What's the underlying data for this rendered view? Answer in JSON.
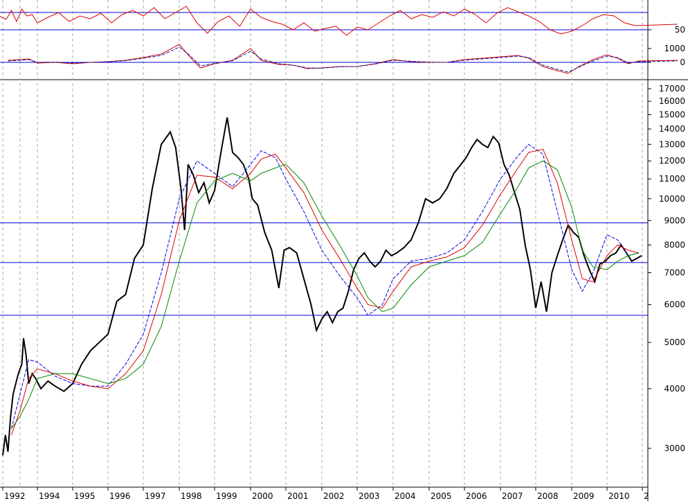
{
  "chart_data": [
    {
      "type": "line",
      "title": "",
      "yticks": [
        50
      ],
      "hlines": [
        75,
        50
      ],
      "series": [
        {
          "color": "#dd0000",
          "x": [
            1991.9,
            1992.2,
            1992.5,
            1992.8,
            1993.1,
            1993.4,
            1993.7,
            1994.0,
            1994.3,
            1994.6,
            1994.9,
            1995.2,
            1995.5,
            1995.8,
            1996.1,
            1996.4,
            1996.7,
            1997.0,
            1997.3,
            1997.6,
            1997.9,
            1998.2,
            1998.5,
            1998.8,
            1999.1,
            1999.4,
            1999.7,
            2000.0,
            2000.3,
            2000.6,
            2000.9,
            2001.2,
            2001.5,
            2001.8,
            2002.1,
            2002.4,
            2002.7,
            2003.0,
            2003.3,
            2003.6,
            2003.9,
            2004.2,
            2004.5,
            2004.8,
            2005.1,
            2005.4,
            2005.7,
            2006.0,
            2006.3,
            2006.6,
            2006.9,
            2007.2,
            2007.5,
            2007.8,
            2008.1,
            2008.4,
            2008.7,
            2009.0,
            2009.3,
            2009.6,
            2009.9,
            2010.2,
            2010.5,
            2010.8,
            2011.0
          ],
          "values": [
            70,
            65,
            78,
            62,
            80,
            70,
            72,
            60,
            68,
            75,
            62,
            70,
            66,
            74,
            60,
            72,
            78,
            70,
            82,
            66,
            75,
            84,
            60,
            45,
            62,
            70,
            55,
            80,
            68,
            62,
            58,
            50,
            60,
            48,
            52,
            55,
            42,
            54,
            50,
            60,
            70,
            78,
            66,
            72,
            68,
            76,
            70,
            80,
            72,
            60,
            74,
            82,
            76,
            70,
            62,
            50,
            44,
            48,
            56,
            66,
            72,
            70,
            60,
            56,
            58
          ]
        }
      ]
    },
    {
      "type": "line",
      "title": "",
      "yticks": [
        1000,
        0
      ],
      "hlines": [
        0
      ],
      "series": [
        {
          "color": "#cc0000",
          "x": [
            1992.3,
            1993.0,
            1993.5,
            1994.0,
            1994.5,
            1995.0,
            1995.5,
            1996.0,
            1996.5,
            1997.0,
            1997.5,
            1998.0,
            1998.3,
            1998.6,
            1999.0,
            1999.5,
            2000.0,
            2000.3,
            2000.8,
            2001.2,
            2001.6,
            2002.0,
            2002.5,
            2003.0,
            2003.5,
            2004.0,
            2004.5,
            2005.0,
            2005.5,
            2006.0,
            2006.5,
            2007.0,
            2007.5,
            2007.8,
            2008.2,
            2008.6,
            2008.9,
            2009.2,
            2009.6,
            2010.0,
            2010.3,
            2010.6,
            2010.9,
            2011.0
          ],
          "values": [
            150,
            200,
            250,
            -50,
            0,
            -100,
            0,
            50,
            150,
            350,
            600,
            1300,
            400,
            -400,
            -100,
            150,
            1000,
            150,
            -150,
            -200,
            -450,
            -400,
            -300,
            -300,
            -100,
            200,
            50,
            0,
            0,
            200,
            300,
            400,
            500,
            300,
            -300,
            -600,
            -800,
            -300,
            200,
            550,
            300,
            -100,
            100,
            150
          ]
        },
        {
          "color": "#1a1aa0",
          "x": [
            1992.3,
            1993.0,
            1993.5,
            1994.0,
            1994.5,
            1995.0,
            1995.5,
            1996.0,
            1996.5,
            1997.0,
            1997.5,
            1998.0,
            1998.3,
            1998.6,
            1999.0,
            1999.5,
            2000.0,
            2000.3,
            2000.8,
            2001.2,
            2001.6,
            2002.0,
            2002.5,
            2003.0,
            2003.5,
            2004.0,
            2004.5,
            2005.0,
            2005.5,
            2006.0,
            2006.5,
            2007.0,
            2007.5,
            2007.8,
            2008.2,
            2008.6,
            2008.9,
            2009.2,
            2009.6,
            2010.0,
            2010.3,
            2010.6,
            2010.9,
            2011.0
          ],
          "values": [
            100,
            150,
            200,
            0,
            20,
            -50,
            0,
            40,
            120,
            300,
            500,
            1100,
            500,
            -250,
            -80,
            120,
            800,
            250,
            -100,
            -200,
            -400,
            -420,
            -320,
            -300,
            -120,
            150,
            80,
            20,
            0,
            150,
            250,
            350,
            450,
            350,
            -200,
            -500,
            -700,
            -350,
            100,
            450,
            350,
            -50,
            50,
            100
          ]
        }
      ]
    },
    {
      "type": "line",
      "title": "",
      "scale": "log",
      "ylim": [
        2600,
        17600
      ],
      "yticks": [
        17000,
        16000,
        15000,
        14000,
        13000,
        12000,
        11000,
        10000,
        9000,
        8000,
        7000,
        6000,
        5000,
        4000,
        3000
      ],
      "hlines": [
        8900,
        7350,
        5700
      ],
      "xticks": [
        "1992",
        "1994",
        "1995",
        "1996",
        "1997",
        "1998",
        "1999",
        "2000",
        "2001",
        "2002",
        "2003",
        "2004",
        "2005",
        "2006",
        "2007",
        "2008",
        "2009",
        "2010",
        "2"
      ],
      "series": [
        {
          "color": "#000000",
          "x": [
            1992.0,
            1992.15,
            1992.3,
            1992.45,
            1992.6,
            1992.75,
            1992.9,
            1993.1,
            1993.2,
            1993.35,
            1993.5,
            1993.7,
            1993.9,
            1994.1,
            1994.3,
            1994.5,
            1994.75,
            1995.0,
            1995.25,
            1995.5,
            1995.75,
            1996.0,
            1996.25,
            1996.5,
            1996.75,
            1997.0,
            1997.25,
            1997.5,
            1997.75,
            1997.9,
            1998.05,
            1998.15,
            1998.25,
            1998.4,
            1998.55,
            1998.7,
            1998.85,
            1999.0,
            1999.2,
            1999.35,
            1999.5,
            1999.65,
            1999.8,
            1999.95,
            2000.05,
            2000.2,
            2000.4,
            2000.6,
            2000.8,
            2000.95,
            2001.1,
            2001.3,
            2001.5,
            2001.7,
            2001.85,
            2002.0,
            2002.15,
            2002.3,
            2002.45,
            2002.6,
            2002.75,
            2002.9,
            2003.05,
            2003.2,
            2003.35,
            2003.5,
            2003.65,
            2003.8,
            2003.95,
            2004.1,
            2004.3,
            2004.5,
            2004.7,
            2004.9,
            2005.1,
            2005.3,
            2005.5,
            2005.7,
            2005.9,
            2006.05,
            2006.2,
            2006.35,
            2006.5,
            2006.65,
            2006.8,
            2006.95,
            2007.1,
            2007.25,
            2007.4,
            2007.55,
            2007.7,
            2007.85,
            2008.0,
            2008.15,
            2008.3,
            2008.45,
            2008.6,
            2008.75,
            2008.9,
            2009.05,
            2009.2,
            2009.35,
            2009.5,
            2009.65,
            2009.8,
            2009.95,
            2010.1,
            2010.25,
            2010.4,
            2010.55,
            2010.7,
            2010.85,
            2010.98
          ],
          "values": [
            2900,
            3200,
            2950,
            3500,
            3900,
            4100,
            4300,
            4500,
            5100,
            4700,
            4100,
            4300,
            4200,
            4000,
            4150,
            4050,
            3950,
            4100,
            4500,
            4800,
            5000,
            5200,
            6100,
            6300,
            7500,
            8000,
            10500,
            13000,
            13800,
            12800,
            10500,
            8600,
            11800,
            11200,
            10300,
            10800,
            9800,
            10400,
            12800,
            14800,
            12500,
            12200,
            11800,
            11000,
            10000,
            9700,
            8500,
            7800,
            6500,
            7800,
            7900,
            7700,
            6800,
            6000,
            5300,
            5600,
            5800,
            5500,
            5800,
            5900,
            6400,
            7100,
            7500,
            7700,
            7400,
            7200,
            7400,
            7800,
            7600,
            7700,
            7900,
            8200,
            8900,
            10000,
            9800,
            10000,
            10500,
            11300,
            11800,
            12200,
            12800,
            13300,
            13000,
            12800,
            13500,
            13100,
            11800,
            11200,
            10300,
            9500,
            8000,
            7100,
            5900,
            6700,
            5800,
            7000,
            7600,
            8200,
            8800,
            8500,
            8300,
            7600,
            7100,
            6700,
            7300,
            7400,
            7600,
            7700,
            8000,
            7700,
            7400,
            7500,
            7600
          ]
        },
        {
          "color": "#0000dd",
          "x": [
            1992.5,
            1993.0,
            1993.5,
            1994.0,
            1994.5,
            1995.0,
            1995.5,
            1996.0,
            1996.5,
            1997.0,
            1997.5,
            1998.0,
            1998.5,
            1999.0,
            1999.5,
            2000.0,
            2000.3,
            2000.7,
            2001.0,
            2001.5,
            2002.0,
            2002.5,
            2003.0,
            2003.3,
            2003.7,
            2004.0,
            2004.5,
            2005.0,
            2005.5,
            2006.0,
            2006.5,
            2007.0,
            2007.5,
            2007.8,
            2008.2,
            2008.6,
            2009.0,
            2009.3,
            2009.6,
            2010.0,
            2010.3,
            2010.6,
            2010.9
          ],
          "values": [
            3300,
            3900,
            4600,
            4550,
            4250,
            4100,
            4050,
            4050,
            4500,
            5200,
            7000,
            10000,
            12000,
            11300,
            10600,
            11800,
            12600,
            12200,
            11000,
            9400,
            7800,
            6900,
            6200,
            5700,
            6000,
            6800,
            7400,
            7500,
            7700,
            8200,
            9400,
            11000,
            12300,
            13000,
            12400,
            9400,
            7100,
            6400,
            7000,
            8400,
            8200,
            7600,
            7700
          ]
        },
        {
          "color": "#dd0000",
          "x": [
            1992.5,
            1993.0,
            1993.5,
            1994.0,
            1994.5,
            1995.0,
            1995.5,
            1996.0,
            1996.5,
            1997.0,
            1997.5,
            1998.0,
            1998.5,
            1999.0,
            1999.5,
            2000.0,
            2000.3,
            2000.7,
            2001.0,
            2001.5,
            2002.0,
            2002.5,
            2003.0,
            2003.3,
            2003.7,
            2004.0,
            2004.5,
            2005.0,
            2005.5,
            2006.0,
            2006.5,
            2007.0,
            2007.5,
            2007.8,
            2008.2,
            2008.6,
            2009.0,
            2009.3,
            2009.6,
            2010.0,
            2010.3,
            2010.6,
            2010.9
          ],
          "values": [
            3200,
            3600,
            4200,
            4400,
            4300,
            4150,
            4050,
            4000,
            4300,
            4800,
            6300,
            9000,
            11200,
            11100,
            10500,
            11300,
            12100,
            12400,
            11600,
            10300,
            8600,
            7500,
            6500,
            6000,
            5900,
            6400,
            7200,
            7400,
            7550,
            7900,
            8800,
            10200,
            11600,
            12500,
            12700,
            10800,
            8200,
            6800,
            6700,
            7600,
            8000,
            7800,
            7700
          ]
        },
        {
          "color": "#008800",
          "x": [
            1992.5,
            1993.0,
            1993.5,
            1994.0,
            1994.5,
            1995.0,
            1995.5,
            1996.0,
            1996.5,
            1997.0,
            1997.5,
            1998.0,
            1998.5,
            1999.0,
            1999.5,
            2000.0,
            2000.3,
            2000.7,
            2001.0,
            2001.5,
            2002.0,
            2002.5,
            2003.0,
            2003.3,
            2003.7,
            2004.0,
            2004.5,
            2005.0,
            2005.5,
            2006.0,
            2006.5,
            2007.0,
            2007.5,
            2007.8,
            2008.2,
            2008.6,
            2009.0,
            2009.3,
            2009.6,
            2010.0,
            2010.3,
            2010.6,
            2010.9
          ],
          "values": [
            3300,
            3500,
            3800,
            4200,
            4300,
            4300,
            4200,
            4100,
            4200,
            4500,
            5400,
            7400,
            9800,
            10900,
            11300,
            10900,
            11300,
            11600,
            11800,
            10800,
            9200,
            8000,
            6900,
            6200,
            5800,
            5900,
            6600,
            7200,
            7400,
            7600,
            8100,
            9300,
            10600,
            11600,
            12000,
            11500,
            9600,
            7800,
            7200,
            7100,
            7400,
            7600,
            7700
          ]
        }
      ]
    }
  ]
}
